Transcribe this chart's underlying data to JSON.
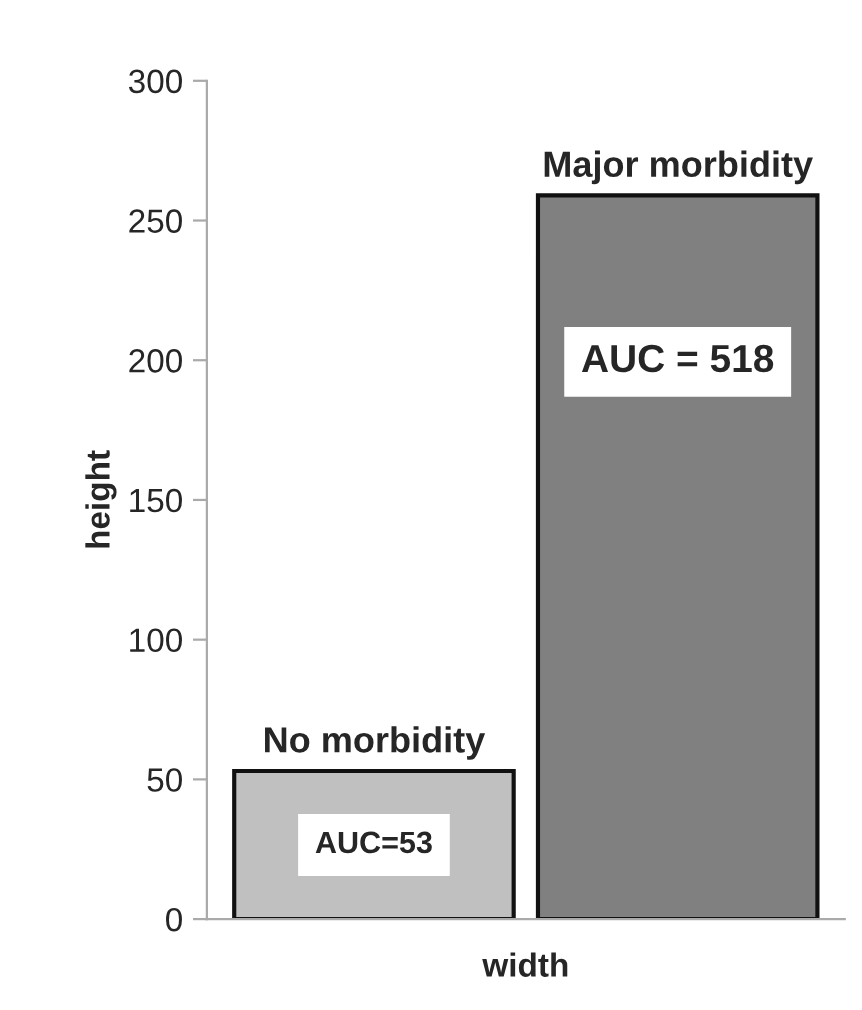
{
  "chart_data": {
    "type": "bar",
    "xlabel": "width",
    "ylabel": "height",
    "categories": [
      "No morbidity",
      "Major morbidity"
    ],
    "values": [
      53,
      259
    ],
    "colors": [
      "#c0c0c0",
      "#808080"
    ],
    "ylim": [
      0,
      300
    ],
    "yticks": [
      0,
      50,
      100,
      150,
      200,
      250,
      300
    ],
    "grid": false,
    "annotations": [
      "AUC=53",
      "AUC = 518"
    ]
  }
}
